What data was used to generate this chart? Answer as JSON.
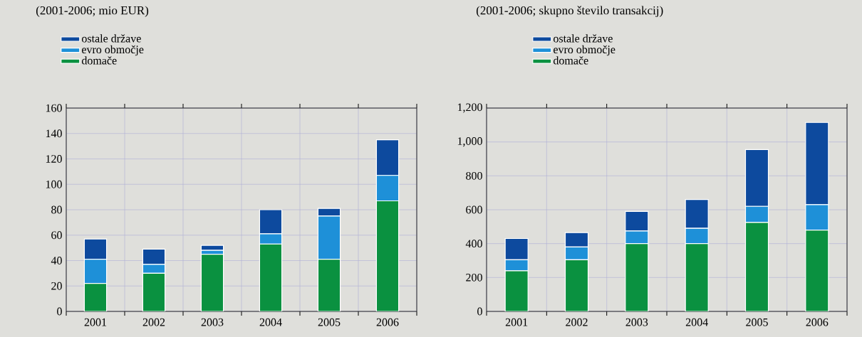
{
  "chart_data": [
    {
      "type": "bar",
      "stacked": true,
      "title": "(2001-2006; mio EUR)",
      "categories": [
        "2001",
        "2002",
        "2003",
        "2004",
        "2005",
        "2006"
      ],
      "series": [
        {
          "name": "domače",
          "color": "#0a9140",
          "values": [
            22,
            30,
            45,
            53,
            41,
            87
          ]
        },
        {
          "name": "evro območje",
          "color": "#1e90d8",
          "values": [
            19,
            7,
            3,
            8,
            34,
            20
          ]
        },
        {
          "name": "ostale države",
          "color": "#0d4a9e",
          "values": [
            16,
            12,
            4,
            19,
            6,
            28
          ]
        }
      ],
      "ylim": [
        0,
        160
      ],
      "yticks": [
        0,
        20,
        40,
        60,
        80,
        100,
        120,
        140,
        160
      ],
      "grid": true,
      "legend": "top left"
    },
    {
      "type": "bar",
      "stacked": true,
      "title": "(2001-2006; skupno število transakcij)",
      "categories": [
        "2001",
        "2002",
        "2003",
        "2004",
        "2005",
        "2006"
      ],
      "series": [
        {
          "name": "domače",
          "color": "#0a9140",
          "values": [
            240,
            305,
            400,
            400,
            525,
            480
          ]
        },
        {
          "name": "evro območje",
          "color": "#1e90d8",
          "values": [
            65,
            75,
            75,
            90,
            95,
            150
          ]
        },
        {
          "name": "ostale države",
          "color": "#0d4a9e",
          "values": [
            125,
            85,
            115,
            170,
            335,
            485
          ]
        }
      ],
      "ylim": [
        0,
        1200
      ],
      "yticks": [
        0,
        200,
        400,
        600,
        800,
        {
          "value": 1000,
          "label": "1,000"
        },
        {
          "value": 1200,
          "label": "1,200"
        }
      ],
      "grid": true,
      "legend": "top left"
    }
  ]
}
